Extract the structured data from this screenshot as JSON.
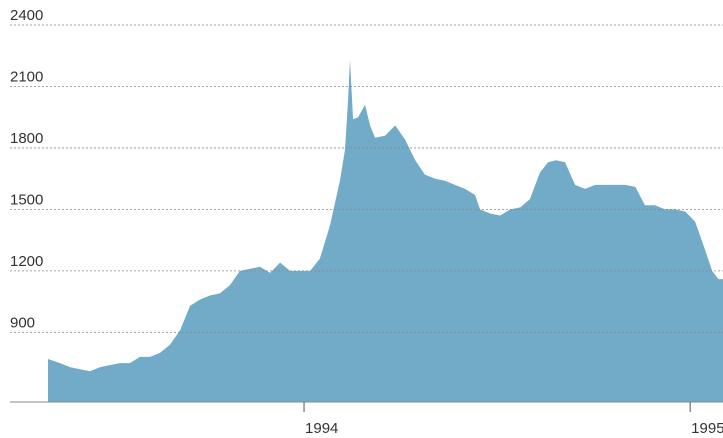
{
  "chart_data": {
    "type": "area",
    "color": "#72abc7",
    "grid": true,
    "x": [
      1993.337,
      1993.368,
      1993.394,
      1993.42,
      1993.446,
      1993.472,
      1993.497,
      1993.523,
      1993.549,
      1993.575,
      1993.601,
      1993.627,
      1993.653,
      1993.679,
      1993.705,
      1993.731,
      1993.756,
      1993.782,
      1993.808,
      1993.834,
      1993.86,
      1993.886,
      1993.912,
      1993.938,
      1993.964,
      1993.99,
      1994.016,
      1994.041,
      1994.067,
      1994.093,
      1994.106,
      1994.114,
      1994.119,
      1994.127,
      1994.14,
      1994.158,
      1994.171,
      1994.184,
      1994.21,
      1994.236,
      1994.262,
      1994.288,
      1994.313,
      1994.339,
      1994.365,
      1994.391,
      1994.417,
      1994.443,
      1994.456,
      1994.482,
      1994.508,
      1994.534,
      1994.56,
      1994.585,
      1994.611,
      1994.632,
      1994.653,
      1994.676,
      1994.702,
      1994.728,
      1994.754,
      1994.78,
      1994.806,
      1994.832,
      1994.858,
      1994.883,
      1994.909,
      1994.935,
      1994.961,
      1994.987,
      1995.013,
      1995.039,
      1995.057,
      1995.073,
      1995.085
    ],
    "values": [
      770,
      750,
      730,
      720,
      710,
      730,
      740,
      750,
      750,
      780,
      780,
      800,
      840,
      910,
      1030,
      1060,
      1080,
      1090,
      1130,
      1200,
      1210,
      1220,
      1190,
      1240,
      1200,
      1200,
      1200,
      1260,
      1420,
      1640,
      1790,
      2030,
      2230,
      1940,
      1950,
      2010,
      1910,
      1850,
      1860,
      1910,
      1840,
      1740,
      1670,
      1650,
      1640,
      1620,
      1600,
      1570,
      1500,
      1480,
      1470,
      1500,
      1510,
      1550,
      1680,
      1730,
      1740,
      1730,
      1620,
      1600,
      1620,
      1620,
      1620,
      1620,
      1610,
      1520,
      1520,
      1500,
      1500,
      1490,
      1440,
      1300,
      1200,
      1160,
      1160
    ],
    "xlim": [
      1993.337,
      1995.085
    ],
    "xticks": [
      1994,
      1995
    ],
    "ylim": [
      560,
      2400
    ],
    "yticks": [
      900,
      1200,
      1500,
      1800,
      2100,
      2400
    ]
  }
}
